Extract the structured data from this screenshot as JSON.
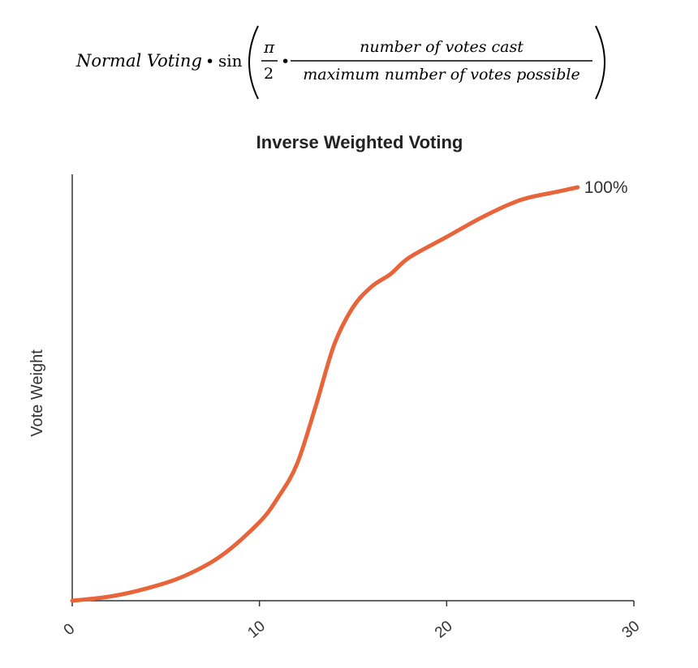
{
  "formula": {
    "term": "Normal Voting",
    "operator": "•",
    "function": "sin",
    "constant_numerator": "π",
    "constant_denominator": "2",
    "operator2": "•",
    "fraction_numerator": "number of votes cast",
    "fraction_denominator": "maximum number of votes possible"
  },
  "chart_data": {
    "type": "line",
    "title": "Inverse Weighted Voting",
    "xlabel": "",
    "ylabel": "Vote Weight",
    "xlim": [
      0,
      30
    ],
    "ylim": [
      0,
      1
    ],
    "x_ticks": [
      "0",
      "10",
      "20",
      "30"
    ],
    "grid": false,
    "series": [
      {
        "color": "#e8643a",
        "x": [
          0,
          2,
          4,
          6,
          8,
          10,
          11,
          12,
          13,
          14,
          15,
          16,
          17,
          18,
          20,
          22,
          24,
          26,
          27
        ],
        "y": [
          0,
          0.01,
          0.03,
          0.06,
          0.11,
          0.19,
          0.25,
          0.33,
          0.47,
          0.62,
          0.71,
          0.76,
          0.79,
          0.83,
          0.88,
          0.93,
          0.97,
          0.99,
          1.0
        ]
      }
    ],
    "end_label": "100%"
  }
}
